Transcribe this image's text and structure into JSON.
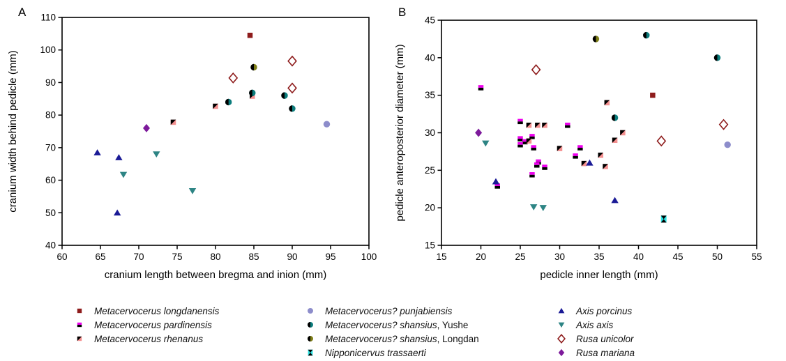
{
  "figure_title": "",
  "styles": {
    "longdanensis": {
      "marker": "square",
      "colors": [
        "#8e1c1c"
      ]
    },
    "pardinensis": {
      "marker": "square-half",
      "colors": [
        "#ee00ee",
        "#000000"
      ]
    },
    "rhenanus": {
      "marker": "square-diag",
      "colors": [
        "#000000",
        "#f49090"
      ]
    },
    "punjabiensis": {
      "marker": "circle",
      "colors": [
        "#8d8dcb"
      ]
    },
    "shansius-yushe": {
      "marker": "circle-half",
      "colors": [
        "#000000",
        "#0c7d7d"
      ]
    },
    "shansius-longdan": {
      "marker": "circle-half",
      "colors": [
        "#000000",
        "#7e7e18"
      ]
    },
    "trassaerti": {
      "marker": "hourglass",
      "colors": [
        "#2ee2e2",
        "#000000"
      ]
    },
    "porcinus": {
      "marker": "tri-up",
      "colors": [
        "#1a1a96"
      ]
    },
    "axis-axis": {
      "marker": "tri-down",
      "colors": [
        "#2d8484"
      ]
    },
    "unicolor": {
      "marker": "diamond-open",
      "colors": [
        "#8e1c1c"
      ]
    },
    "mariana": {
      "marker": "diamond",
      "colors": [
        "#7d1a9b"
      ]
    }
  },
  "chart_data": [
    {
      "type": "scatter",
      "panel_letter": "A",
      "xlabel": "cranium length between bregma and inion (mm)",
      "ylabel": "cranium width behind pedicle (mm)",
      "xlim": [
        60,
        100
      ],
      "xstep": 5,
      "ylim": [
        40,
        110
      ],
      "ystep": 10,
      "grid": false,
      "series": [
        {
          "key": "longdanensis",
          "name": "Metacervocerus longdanensis",
          "points": [
            [
              84.5,
              104.5
            ]
          ]
        },
        {
          "key": "rhenanus",
          "name": "Metacervocerus rhenanus",
          "points": [
            [
              74.5,
              77.8
            ],
            [
              80,
              82.7
            ],
            [
              84.8,
              85.8
            ]
          ]
        },
        {
          "key": "punjabiensis",
          "name": "Metacervocerus? punjabiensis",
          "points": [
            [
              94.5,
              77.2
            ]
          ]
        },
        {
          "key": "shansius-yushe",
          "name": "Metacervocerus? shansius, Yushe",
          "points": [
            [
              81.7,
              84
            ],
            [
              84.8,
              86.8
            ],
            [
              89,
              86
            ],
            [
              90,
              82
            ]
          ]
        },
        {
          "key": "shansius-longdan",
          "name": "Metacervocerus? shansius, Longdan",
          "points": [
            [
              85,
              94.7
            ]
          ]
        },
        {
          "key": "porcinus",
          "name": "Axis porcinus",
          "points": [
            [
              64.6,
              68.5
            ],
            [
              67.4,
              67
            ],
            [
              67.2,
              50
            ]
          ]
        },
        {
          "key": "axis-axis",
          "name": "Axis axis",
          "points": [
            [
              68,
              61.7
            ],
            [
              72.3,
              68
            ],
            [
              77,
              56.7
            ]
          ]
        },
        {
          "key": "unicolor",
          "name": "Rusa unicolor",
          "points": [
            [
              82.3,
              91.4
            ],
            [
              90,
              96.6
            ],
            [
              90,
              88.3
            ]
          ]
        },
        {
          "key": "mariana",
          "name": "Rusa mariana",
          "points": [
            [
              71,
              76
            ]
          ]
        }
      ]
    },
    {
      "type": "scatter",
      "panel_letter": "B",
      "xlabel": "pedicle inner length (mm)",
      "ylabel": "pedicle anteroposterior diameter (mm)",
      "xlim": [
        15,
        55
      ],
      "xstep": 5,
      "ylim": [
        15,
        45
      ],
      "ystep": 5,
      "grid": false,
      "series": [
        {
          "key": "longdanensis",
          "name": "Metacervocerus longdanensis",
          "points": [
            [
              41.8,
              35
            ]
          ]
        },
        {
          "key": "pardinensis",
          "name": "Metacervocerus pardinensis",
          "points": [
            [
              20,
              36
            ],
            [
              25,
              31.5
            ],
            [
              31,
              31
            ],
            [
              26.5,
              29.5
            ],
            [
              25,
              29.2
            ],
            [
              25.6,
              28.8
            ],
            [
              25,
              28.4
            ],
            [
              26.7,
              28
            ],
            [
              32.6,
              28
            ],
            [
              32,
              26.9
            ],
            [
              27.3,
              26.1
            ],
            [
              27.1,
              25.7
            ],
            [
              28.1,
              25.4
            ],
            [
              26.5,
              24.4
            ],
            [
              22.1,
              22.9
            ]
          ]
        },
        {
          "key": "rhenanus",
          "name": "Metacervocerus rhenanus",
          "points": [
            [
              36,
              34
            ],
            [
              26.1,
              31
            ],
            [
              27.2,
              31
            ],
            [
              28.1,
              31
            ],
            [
              38,
              30
            ],
            [
              37,
              29
            ],
            [
              26.1,
              28.9
            ],
            [
              30,
              27.9
            ],
            [
              35.2,
              27
            ],
            [
              33.1,
              25.9
            ],
            [
              35.8,
              25.5
            ]
          ]
        },
        {
          "key": "punjabiensis",
          "name": "Metacervocerus? punjabiensis",
          "points": [
            [
              51.3,
              28.4
            ]
          ]
        },
        {
          "key": "shansius-yushe",
          "name": "Metacervocerus? shansius, Yushe",
          "points": [
            [
              41,
              43
            ],
            [
              50,
              40
            ],
            [
              37,
              32
            ]
          ]
        },
        {
          "key": "shansius-longdan",
          "name": "Metacervocerus? shansius, Longdan",
          "points": [
            [
              34.6,
              42.5
            ]
          ]
        },
        {
          "key": "trassaerti",
          "name": "Nipponicervus trassaerti",
          "points": [
            [
              43.2,
              18.5
            ]
          ]
        },
        {
          "key": "porcinus",
          "name": "Axis porcinus",
          "points": [
            [
              21.9,
              23.5
            ],
            [
              33.8,
              26
            ],
            [
              37,
              21
            ]
          ]
        },
        {
          "key": "axis-axis",
          "name": "Axis axis",
          "points": [
            [
              20.6,
              28.6
            ],
            [
              26.7,
              20.1
            ],
            [
              27.9,
              20
            ]
          ]
        },
        {
          "key": "unicolor",
          "name": "Rusa unicolor",
          "points": [
            [
              27,
              38.4
            ],
            [
              42.9,
              28.9
            ],
            [
              50.8,
              31.1
            ]
          ]
        },
        {
          "key": "mariana",
          "name": "Rusa mariana",
          "points": [
            [
              19.7,
              30
            ]
          ]
        }
      ]
    }
  ],
  "legend": {
    "position": "bottom",
    "columns": [
      {
        "items": [
          {
            "key": "longdanensis",
            "label": "Metacervocerus longdanensis",
            "suffix": ""
          },
          {
            "key": "pardinensis",
            "label": "Metacervocerus pardinensis",
            "suffix": ""
          },
          {
            "key": "rhenanus",
            "label": "Metacervocerus rhenanus",
            "suffix": ""
          }
        ]
      },
      {
        "items": [
          {
            "key": "punjabiensis",
            "label": "Metacervocerus? punjabiensis",
            "suffix": ""
          },
          {
            "key": "shansius-yushe",
            "label": "Metacervocerus? shansius",
            "suffix": ", Yushe"
          },
          {
            "key": "shansius-longdan",
            "label": "Metacervocerus? shansius",
            "suffix": ", Longdan"
          },
          {
            "key": "trassaerti",
            "label": "Nipponicervus trassaerti",
            "suffix": ""
          }
        ]
      },
      {
        "items": [
          {
            "key": "porcinus",
            "label": "Axis porcinus",
            "suffix": ""
          },
          {
            "key": "axis-axis",
            "label": "Axis axis",
            "suffix": ""
          },
          {
            "key": "unicolor",
            "label": "Rusa unicolor",
            "suffix": ""
          },
          {
            "key": "mariana",
            "label": "Rusa mariana",
            "suffix": ""
          }
        ]
      }
    ]
  }
}
